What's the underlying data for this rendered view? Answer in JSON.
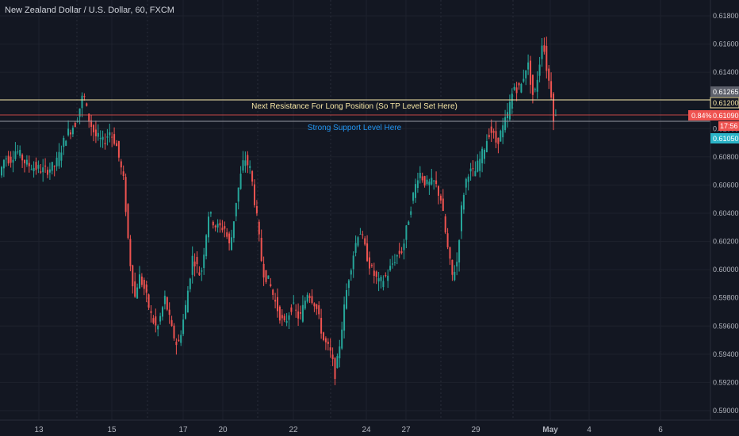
{
  "header": {
    "title": "New Zealand Dollar / U.S. Dollar, 60, FXCM"
  },
  "colors": {
    "background": "#131722",
    "grid": "#1e222d",
    "up": "#26a69a",
    "down": "#ef5350",
    "resistance_line": "#f7e7a6",
    "support_line": "#9598a1",
    "resistance_text": "#f7e7a6",
    "support_text": "#2196f3",
    "badge_gray": "#5d606b",
    "badge_yellow_text": "#f7e7a6",
    "badge_red": "#ef5350",
    "badge_teal": "#2ab3c7"
  },
  "chart_data": {
    "type": "candlestick",
    "title": "New Zealand Dollar / U.S. Dollar, 60, FXCM",
    "xlabel": "",
    "ylabel": "",
    "ylim": [
      0.5898,
      0.6188
    ],
    "yticks": [
      "0.61800",
      "0.61600",
      "0.61400",
      "0.61200",
      "0.61000",
      "0.60800",
      "0.60600",
      "0.60400",
      "0.60200",
      "0.60000",
      "0.59800",
      "0.59600",
      "0.59400",
      "0.59200",
      "0.59000"
    ],
    "xticks": [
      "13",
      "15",
      "17",
      "20",
      "22",
      "24",
      "27",
      "29",
      "May",
      "4",
      "6"
    ],
    "grid": true,
    "price_path": [
      [
        0,
        0.6065
      ],
      [
        8,
        0.608
      ],
      [
        15,
        0.6078
      ],
      [
        22,
        0.6085
      ],
      [
        35,
        0.6075
      ],
      [
        48,
        0.6072
      ],
      [
        58,
        0.607
      ],
      [
        72,
        0.6074
      ],
      [
        85,
        0.6095
      ],
      [
        98,
        0.6105
      ],
      [
        107,
        0.6125
      ],
      [
        113,
        0.6108
      ],
      [
        122,
        0.6095
      ],
      [
        132,
        0.609
      ],
      [
        140,
        0.6098
      ],
      [
        148,
        0.609
      ],
      [
        158,
        0.6062
      ],
      [
        165,
        0.601
      ],
      [
        172,
        0.598
      ],
      [
        177,
        0.5996
      ],
      [
        183,
        0.5988
      ],
      [
        192,
        0.5968
      ],
      [
        200,
        0.5957
      ],
      [
        210,
        0.598
      ],
      [
        218,
        0.5958
      ],
      [
        226,
        0.5945
      ],
      [
        235,
        0.597
      ],
      [
        245,
        0.601
      ],
      [
        255,
        0.5995
      ],
      [
        265,
        0.604
      ],
      [
        275,
        0.603
      ],
      [
        285,
        0.603
      ],
      [
        292,
        0.6015
      ],
      [
        300,
        0.605
      ],
      [
        310,
        0.608
      ],
      [
        318,
        0.607
      ],
      [
        325,
        0.604
      ],
      [
        333,
        0.6
      ],
      [
        342,
        0.599
      ],
      [
        350,
        0.5975
      ],
      [
        360,
        0.596
      ],
      [
        370,
        0.5975
      ],
      [
        380,
        0.5965
      ],
      [
        390,
        0.5985
      ],
      [
        400,
        0.5975
      ],
      [
        410,
        0.595
      ],
      [
        418,
        0.5942
      ],
      [
        425,
        0.5925
      ],
      [
        432,
        0.5955
      ],
      [
        440,
        0.599
      ],
      [
        447,
        0.601
      ],
      [
        455,
        0.603
      ],
      [
        462,
        0.6015
      ],
      [
        470,
        0.6
      ],
      [
        480,
        0.599
      ],
      [
        490,
        0.5996
      ],
      [
        500,
        0.6008
      ],
      [
        510,
        0.6015
      ],
      [
        520,
        0.6045
      ],
      [
        530,
        0.607
      ],
      [
        540,
        0.606
      ],
      [
        550,
        0.6062
      ],
      [
        558,
        0.605
      ],
      [
        565,
        0.602
      ],
      [
        572,
        0.5995
      ],
      [
        578,
        0.6005
      ],
      [
        585,
        0.605
      ],
      [
        592,
        0.607
      ],
      [
        600,
        0.6068
      ],
      [
        610,
        0.6082
      ],
      [
        620,
        0.61
      ],
      [
        628,
        0.609
      ],
      [
        636,
        0.61
      ],
      [
        642,
        0.611
      ],
      [
        650,
        0.613
      ],
      [
        658,
        0.6128
      ],
      [
        667,
        0.6148
      ],
      [
        675,
        0.612
      ],
      [
        682,
        0.6145
      ],
      [
        686,
        0.6165
      ],
      [
        692,
        0.614
      ],
      [
        698,
        0.6122
      ],
      [
        700,
        0.6108
      ]
    ],
    "lines": [
      {
        "name": "resistance",
        "price": 0.612,
        "label": "Next Resistance For Long Position (So TP Level Set Here)"
      },
      {
        "name": "support",
        "price": 0.6105,
        "label": "Strong Support Level Here"
      }
    ]
  },
  "price_axis_tags": {
    "gray": "0.61265",
    "yellow": "0.61200",
    "change": "0.84%",
    "red_price": "0.61090",
    "timer": "17:56",
    "teal": "0.61050"
  }
}
